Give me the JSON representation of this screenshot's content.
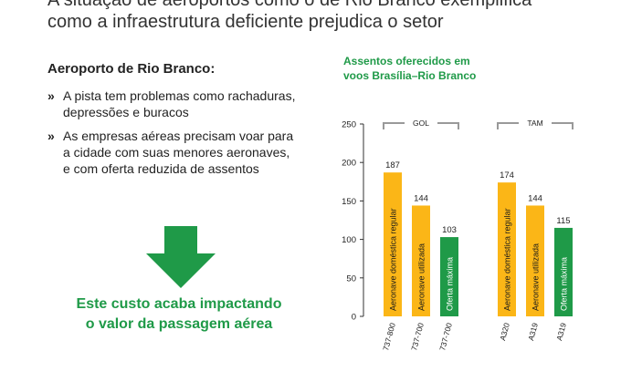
{
  "headline": {
    "line1": "A situação de aeroportos como o de Rio Branco exemplifica",
    "line2": "como a infraestrutura deficiente prejudica o setor"
  },
  "subheading": "Aeroporto de Rio Branco:",
  "bullets": [
    {
      "marker": "»",
      "lines": [
        "A pista tem problemas como rachaduras,",
        "depressões e buracos"
      ]
    },
    {
      "marker": "»",
      "lines": [
        "As empresas aéreas precisam voar para",
        "a cidade com suas menores aeronaves,",
        "e com oferta reduzida de assentos"
      ]
    }
  ],
  "callout": {
    "line1": "Este custo acaba impactando",
    "line2": "o valor da passagem aérea"
  },
  "colors": {
    "green": "#1f9a48",
    "yellow": "#fbb617"
  },
  "chart_data": {
    "type": "bar",
    "title_lines": [
      "Assentos oferecidos em",
      "voos Brasília–Rio Branco"
    ],
    "ylim": [
      0,
      250
    ],
    "yticks": [
      0,
      50,
      100,
      150,
      200,
      250
    ],
    "groups": [
      {
        "name": "GOL",
        "bars": [
          {
            "category": "737-800",
            "value": 187,
            "label": "Aeronave doméstica regular",
            "color": "#fbb617"
          },
          {
            "category": "737-700",
            "value": 144,
            "label": "Aeronave utilizada",
            "color": "#fbb617"
          },
          {
            "category": "737-700",
            "value": 103,
            "label": "Oferta máxima",
            "color": "#1f9a48"
          }
        ]
      },
      {
        "name": "TAM",
        "bars": [
          {
            "category": "A320",
            "value": 174,
            "label": "Aeronave doméstica regular",
            "color": "#fbb617"
          },
          {
            "category": "A319",
            "value": 144,
            "label": "Aeronave utilizada",
            "color": "#fbb617"
          },
          {
            "category": "A319",
            "value": 115,
            "label": "Oferta máxima",
            "color": "#1f9a48"
          }
        ]
      }
    ]
  }
}
